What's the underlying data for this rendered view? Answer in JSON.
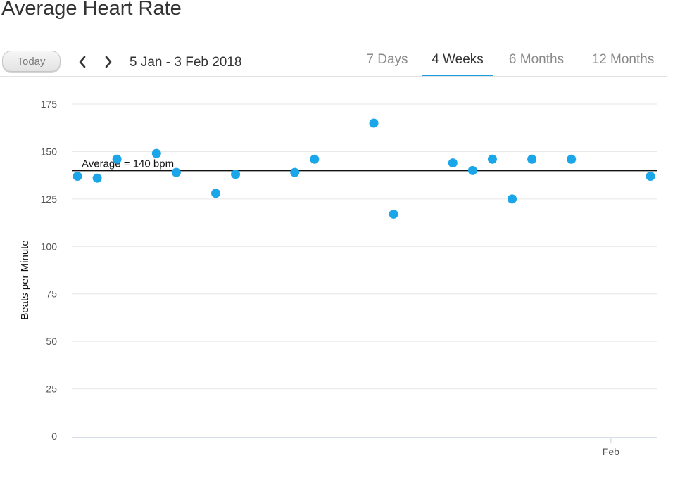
{
  "header": {
    "title": "Average Heart Rate"
  },
  "toolbar": {
    "today_label": "Today",
    "prev_icon": "chevron-left-icon",
    "next_icon": "chevron-right-icon",
    "date_range": "5 Jan - 3 Feb 2018"
  },
  "tabs": [
    {
      "label": "7 Days",
      "active": false
    },
    {
      "label": "4 Weeks",
      "active": true
    },
    {
      "label": "6 Months",
      "active": false
    },
    {
      "label": "12 Months",
      "active": false
    }
  ],
  "colors": {
    "accent": "#1aa0e0",
    "point": "#1aa6e8",
    "gridline": "#e6e6e6",
    "average_line": "#111111"
  },
  "chart_data": {
    "type": "scatter",
    "title": "",
    "xlabel": "",
    "ylabel": "Beats per Minute",
    "ylim": [
      0,
      175
    ],
    "y_ticks": [
      0,
      25,
      50,
      75,
      100,
      125,
      150,
      175
    ],
    "xlim": [
      "2018-01-05",
      "2018-02-03"
    ],
    "x_ticks": [
      {
        "value": "2018-02-01",
        "label": "Feb"
      }
    ],
    "grid": true,
    "series": [
      {
        "points": [
          {
            "x": "2018-01-05",
            "y": 137
          },
          {
            "x": "2018-01-06",
            "y": 136
          },
          {
            "x": "2018-01-07",
            "y": 146
          },
          {
            "x": "2018-01-09",
            "y": 149
          },
          {
            "x": "2018-01-10",
            "y": 139
          },
          {
            "x": "2018-01-12",
            "y": 128
          },
          {
            "x": "2018-01-13",
            "y": 138
          },
          {
            "x": "2018-01-16",
            "y": 139
          },
          {
            "x": "2018-01-17",
            "y": 146
          },
          {
            "x": "2018-01-20",
            "y": 165
          },
          {
            "x": "2018-01-21",
            "y": 117
          },
          {
            "x": "2018-01-24",
            "y": 144
          },
          {
            "x": "2018-01-25",
            "y": 140
          },
          {
            "x": "2018-01-26",
            "y": 146
          },
          {
            "x": "2018-01-27",
            "y": 125
          },
          {
            "x": "2018-01-28",
            "y": 146
          },
          {
            "x": "2018-01-30",
            "y": 146
          },
          {
            "x": "2018-02-03",
            "y": 137
          }
        ]
      }
    ],
    "reference_line": {
      "y": 140,
      "label": "Average = 140 bpm"
    }
  }
}
